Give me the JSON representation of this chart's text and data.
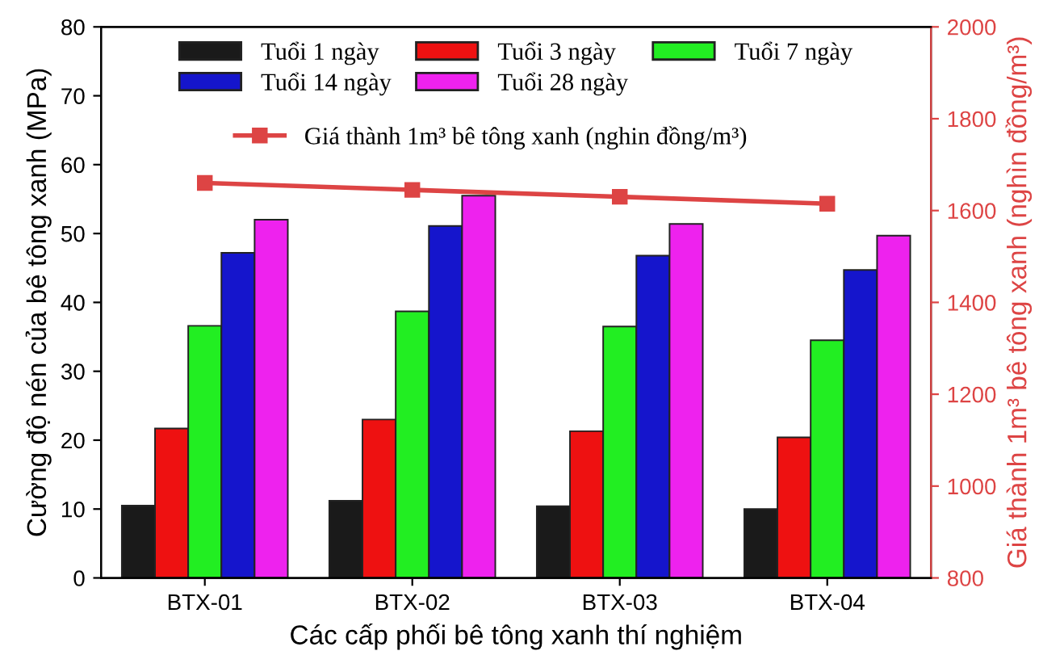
{
  "chart_data": {
    "type": "bar",
    "xlabel": "Các cấp phối bê tông xanh thí nghiệm",
    "ylabel": "Cường độ nén của bê tông xanh (MPa)",
    "y2label": "Giá thành 1m³ bê tông xanh (nghìn đồng/m³)",
    "categories": [
      "BTX-01",
      "BTX-02",
      "BTX-03",
      "BTX-04"
    ],
    "series": [
      {
        "name": "Tuổi 1 ngày",
        "color": "#1a1a1a",
        "values": [
          10.5,
          11.2,
          10.4,
          10.0
        ]
      },
      {
        "name": "Tuổi 3 ngày",
        "color": "#ee1111",
        "values": [
          21.7,
          23.0,
          21.3,
          20.4
        ]
      },
      {
        "name": "Tuổi 7 ngày",
        "color": "#22ee22",
        "values": [
          36.6,
          38.7,
          36.5,
          34.5
        ]
      },
      {
        "name": "Tuổi 14 ngày",
        "color": "#1515cc",
        "values": [
          47.2,
          51.1,
          46.8,
          44.7
        ]
      },
      {
        "name": "Tuổi 28 ngày",
        "color": "#ee22ee",
        "values": [
          52.0,
          55.5,
          51.4,
          49.7
        ]
      },
      {
        "name": "Giá thành 1m³ bê tông xanh (nghin đồng/m³)",
        "type": "line",
        "axis": "y2",
        "color": "#dd4444",
        "marker": "square",
        "values": [
          1660,
          1645,
          1630,
          1615
        ]
      }
    ],
    "ylim": [
      0,
      80
    ],
    "yticks": [
      0,
      10,
      20,
      30,
      40,
      50,
      60,
      70,
      80
    ],
    "y2lim": [
      800,
      2000
    ],
    "y2ticks": [
      800,
      1000,
      1200,
      1400,
      1600,
      1800,
      2000
    ],
    "legend": "top",
    "grid": false
  }
}
